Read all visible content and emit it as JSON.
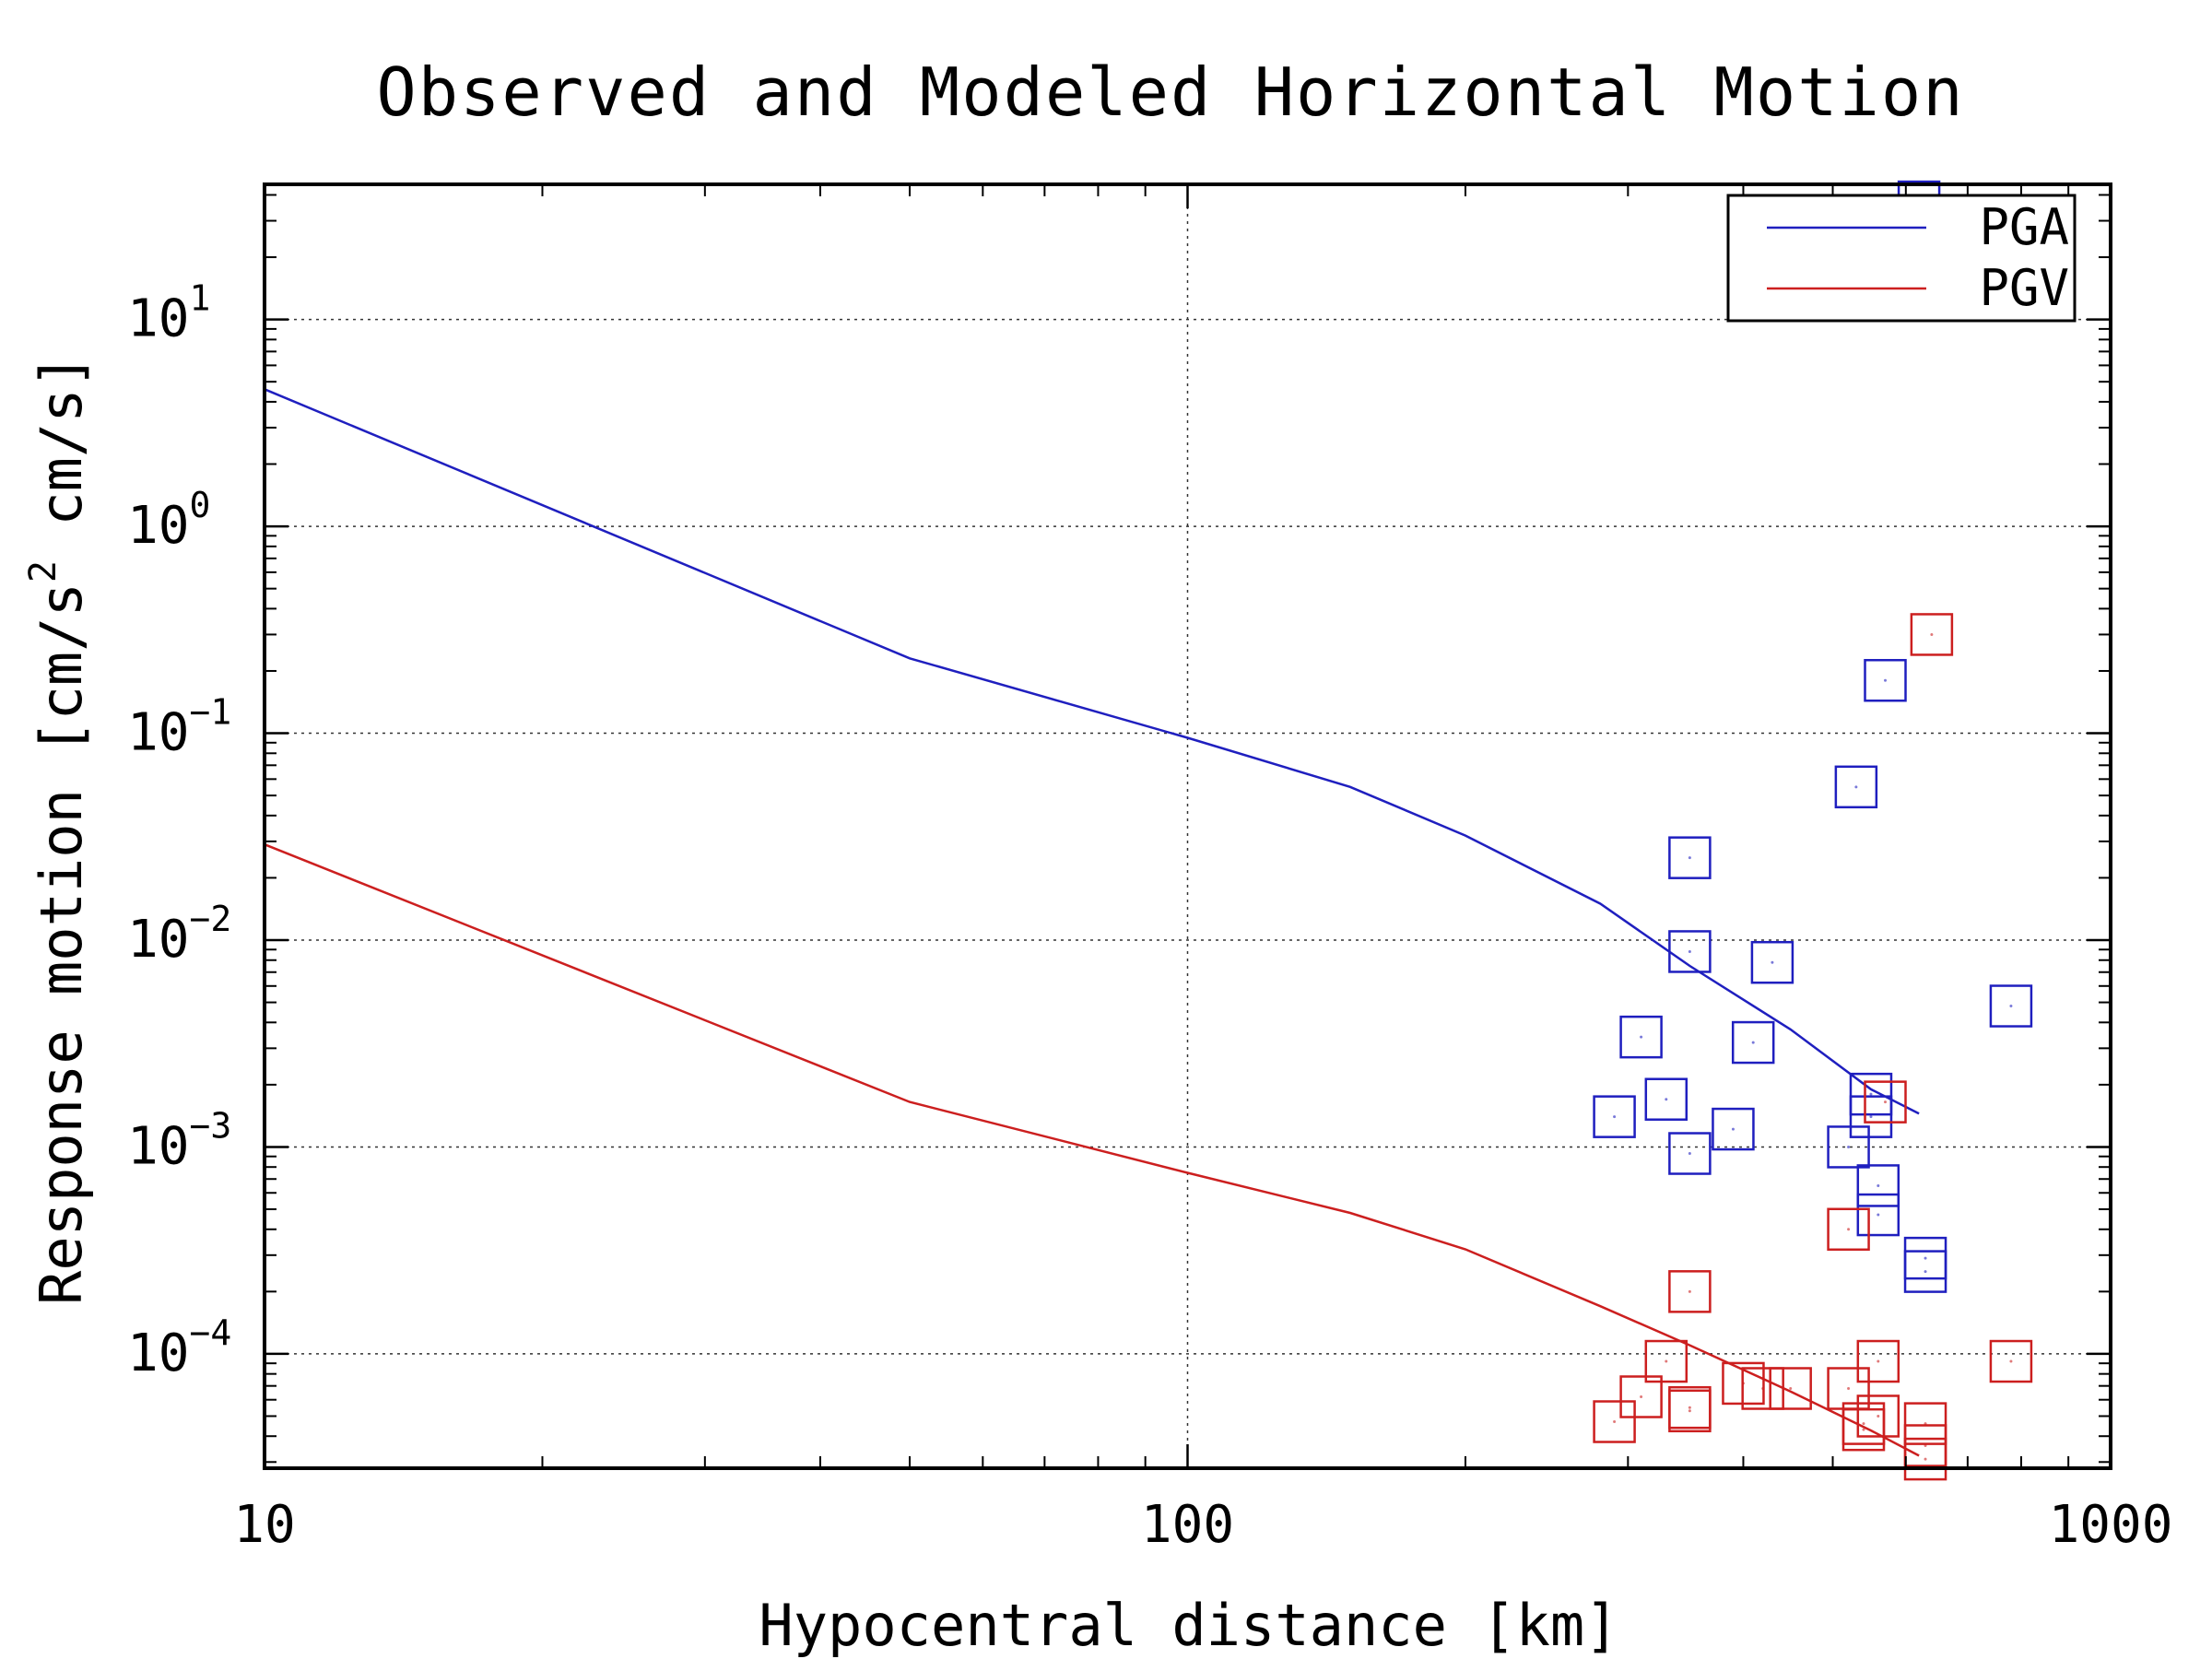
{
  "chart_data": {
    "type": "scatter",
    "title": "Observed and Modeled Horizontal Motion",
    "xlabel": "Hypocentral distance [km]",
    "ylabel": "Response motion  [cm/s²  cm/s]",
    "ylabel_parts": [
      "Response motion  [cm/s",
      "2",
      "  cm/s]"
    ],
    "xscale": "log",
    "yscale": "log",
    "xlim": [
      10,
      1000
    ],
    "ylim": [
      2.8e-05,
      45
    ],
    "grid": true,
    "legend_position": "top-right",
    "x_ticks": [
      {
        "value": 10,
        "label": "10"
      },
      {
        "value": 100,
        "label": "100"
      },
      {
        "value": 1000,
        "label": "1000"
      }
    ],
    "y_ticks": [
      {
        "value": 10,
        "base": "10",
        "exp": "1"
      },
      {
        "value": 1,
        "base": "10",
        "exp": "0"
      },
      {
        "value": 0.1,
        "base": "10",
        "exp": "−1"
      },
      {
        "value": 0.01,
        "base": "10",
        "exp": "−2"
      },
      {
        "value": 0.001,
        "base": "10",
        "exp": "−3"
      },
      {
        "value": 0.0001,
        "base": "10",
        "exp": "−4"
      }
    ],
    "series": [
      {
        "name": "PGA",
        "color": "#1f1fbf",
        "curve": [
          [
            10,
            4.6
          ],
          [
            50,
            0.23
          ],
          [
            100,
            0.095
          ],
          [
            150,
            0.055
          ],
          [
            200,
            0.032
          ],
          [
            280,
            0.015
          ],
          [
            350,
            0.0075
          ],
          [
            450,
            0.0037
          ],
          [
            550,
            0.0019
          ],
          [
            620,
            0.00145
          ]
        ],
        "points": [
          [
            620,
            37
          ],
          [
            570,
            0.18
          ],
          [
            530,
            0.055
          ],
          [
            350,
            0.025
          ],
          [
            350,
            0.0088
          ],
          [
            430,
            0.0078
          ],
          [
            780,
            0.0048
          ],
          [
            310,
            0.0034
          ],
          [
            410,
            0.0032
          ],
          [
            330,
            0.0017
          ],
          [
            550,
            0.0018
          ],
          [
            550,
            0.0014
          ],
          [
            290,
            0.0014
          ],
          [
            390,
            0.00122
          ],
          [
            520,
            0.001
          ],
          [
            350,
            0.00093
          ],
          [
            560,
            0.00065
          ],
          [
            560,
            0.00047
          ],
          [
            630,
            0.00029
          ],
          [
            630,
            0.00025
          ]
        ]
      },
      {
        "name": "PGV",
        "color": "#cc1f1f",
        "curve": [
          [
            10,
            0.029
          ],
          [
            50,
            0.00165
          ],
          [
            100,
            0.00075
          ],
          [
            150,
            0.00048
          ],
          [
            200,
            0.00032
          ],
          [
            280,
            0.00017
          ],
          [
            350,
            0.00011
          ],
          [
            450,
            6.58e-05
          ],
          [
            550,
            4.26e-05
          ],
          [
            620,
            3.22e-05
          ]
        ],
        "points": [
          [
            640,
            0.3
          ],
          [
            570,
            0.00165
          ],
          [
            520,
            0.0004
          ],
          [
            350,
            0.0002
          ],
          [
            330,
            9.2e-05
          ],
          [
            560,
            9.2e-05
          ],
          [
            780,
            9.2e-05
          ],
          [
            400,
            7.2e-05
          ],
          [
            420,
            6.8e-05
          ],
          [
            450,
            6.8e-05
          ],
          [
            520,
            6.8e-05
          ],
          [
            310,
            6.2e-05
          ],
          [
            350,
            5.5e-05
          ],
          [
            350,
            5.3e-05
          ],
          [
            560,
            5e-05
          ],
          [
            290,
            4.7e-05
          ],
          [
            540,
            4.6e-05
          ],
          [
            540,
            4.3e-05
          ],
          [
            630,
            4.6e-05
          ],
          [
            630,
            3.6e-05
          ],
          [
            630,
            3.1e-05
          ]
        ]
      }
    ]
  }
}
